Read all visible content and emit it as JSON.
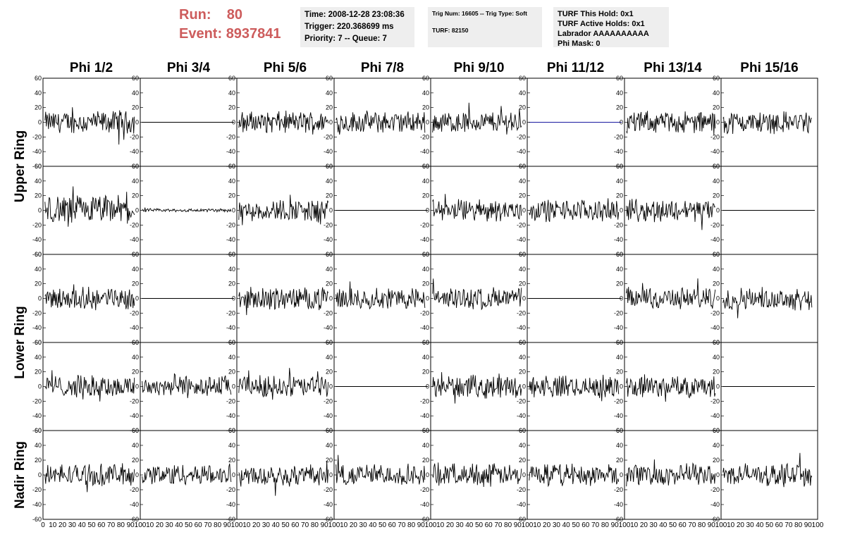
{
  "run_label": "Run:",
  "run_value": "80",
  "event_label": "Event:",
  "event_value": "8937841",
  "time_box": {
    "time": "Time: 2008-12-28 23:08:36",
    "trigger": "Trigger: 220.368699 ms",
    "priority": "Priority: 7 -- Queue: 7"
  },
  "trig_box": {
    "trig_line": "Trig Num: 16605 -- Trig Type: Soft",
    "turf_line": "TURF: 82150"
  },
  "turf_box": {
    "hold": "TURF This Hold: 0x1",
    "active": "TURF Active Holds: 0x1",
    "labrador": "Labrador AAAAAAAAAA",
    "phi_mask": "Phi Mask: 0"
  },
  "phi_headers": [
    "Phi 1/2",
    "Phi 3/4",
    "Phi 5/6",
    "Phi 7/8",
    "Phi 9/10",
    "Phi 11/12",
    "Phi 13/14",
    "Phi 15/16"
  ],
  "ring_labels": [
    "Upper Ring",
    "Lower Ring",
    "Nadir Ring"
  ],
  "y_ticks": [
    "60",
    "40",
    "20",
    "0",
    "-20",
    "-40",
    "-60"
  ],
  "x_ticks": [
    "0",
    "10",
    "20",
    "30",
    "40",
    "50",
    "60",
    "70",
    "80",
    "90",
    "100"
  ],
  "chart_data": {
    "type": "line",
    "xlim": [
      0,
      100
    ],
    "ylim": [
      -60,
      60
    ],
    "rows": 5,
    "cols": 8,
    "panel_state": [
      [
        "noise",
        "flat",
        "noise",
        "noise",
        "noise",
        "flat-blue",
        "noise",
        "noise"
      ],
      [
        "noise-strong",
        "low",
        "noise",
        "flat",
        "noise",
        "noise",
        "noise",
        "flat"
      ],
      [
        "noise",
        "flat",
        "noise",
        "noise",
        "noise",
        "flat",
        "noise",
        "noise"
      ],
      [
        "noise",
        "noise",
        "noise",
        "flat",
        "noise",
        "noise",
        "noise",
        "flat"
      ],
      [
        "noise",
        "noise",
        "noise",
        "noise",
        "noise",
        "noise",
        "noise",
        "noise"
      ]
    ]
  }
}
